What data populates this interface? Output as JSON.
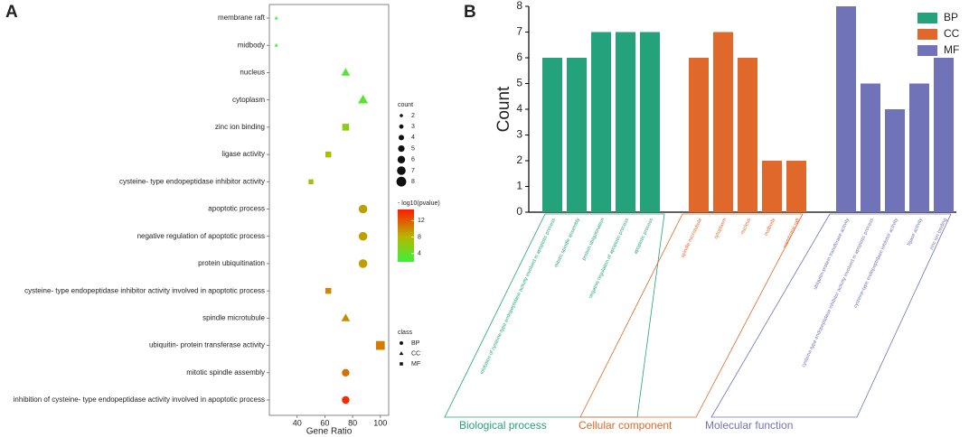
{
  "chart_data": [
    {
      "type": "scatter",
      "panel": "A",
      "x_label": "Gene Ratio",
      "categories": [
        "membrane raft",
        "midbody",
        "nucleus",
        "cytoplasm",
        "zinc ion binding",
        "ligase activity",
        "cysteine- type endopeptidase inhibitor activity",
        "apoptotic process",
        "negative regulation of apoptotic process",
        "protein ubiquitination",
        "cysteine- type endopeptidase inhibitor activity involved in apoptotic process",
        "spindle microtubule",
        "ubiquitin- protein transferase activity",
        "mitotic spindle assembly",
        "inhibition of cysteine- type endopeptidase activity involved in apoptotic process"
      ],
      "x": [
        25,
        25,
        75,
        87.5,
        75,
        62.5,
        50,
        87.5,
        87.5,
        87.5,
        62.5,
        75,
        100,
        75,
        75
      ],
      "counts": [
        2,
        2,
        6,
        7,
        6,
        5,
        4,
        7,
        7,
        7,
        5,
        6,
        8,
        6,
        6
      ],
      "pvalue": [
        2,
        2,
        3,
        3.5,
        6,
        7.5,
        7,
        9,
        9,
        9,
        10,
        10,
        10.5,
        11,
        14
      ],
      "classes": [
        "CC",
        "CC",
        "CC",
        "CC",
        "MF",
        "MF",
        "MF",
        "BP",
        "BP",
        "BP",
        "MF",
        "CC",
        "MF",
        "BP",
        "BP"
      ],
      "xlim": [
        20,
        106
      ],
      "xticks": [
        40,
        60,
        80,
        100
      ],
      "size_legend": {
        "title": "count",
        "values": [
          2,
          3,
          4,
          5,
          6,
          7,
          8
        ]
      },
      "color_legend": {
        "title": "- log10(pvalue)",
        "lim": [
          2,
          14.7
        ],
        "ticks": [
          4,
          8,
          12
        ],
        "colorscale": [
          {
            "value": 2,
            "color": "#3cf03c"
          },
          {
            "value": 8,
            "color": "#b5b800"
          },
          {
            "value": 14.7,
            "color": "#ff1a00"
          }
        ]
      },
      "shape_legend": {
        "title": "class",
        "values": [
          "BP",
          "CC",
          "MF"
        ],
        "shapes": [
          "circle",
          "triangle",
          "square"
        ]
      }
    },
    {
      "type": "bar",
      "panel": "B",
      "y_label": "Count",
      "ylim": [
        0,
        8
      ],
      "yticks": [
        0,
        1,
        2,
        3,
        4,
        5,
        6,
        7,
        8
      ],
      "series": [
        {
          "name": "BP",
          "group": "Biological process",
          "color": "#23a27b",
          "categories": [
            "inhibition of cysteine-type endopeptidase activity involved in apoptotic process",
            "mitotic spindle assembly",
            "protein ubiquitination",
            "negative regulation of apoptotic process",
            "apoptotic process"
          ],
          "values": [
            6,
            6,
            7,
            7,
            7
          ]
        },
        {
          "name": "CC",
          "group": "Cellular component",
          "color": "#e0682a",
          "categories": [
            "spindle microtubule",
            "cytoplasm",
            "nucleus",
            "midbody",
            "membrane raft"
          ],
          "values": [
            6,
            7,
            6,
            2,
            2
          ]
        },
        {
          "name": "MF",
          "group": "Molecular function",
          "color": "#7073b8",
          "categories": [
            "ubiquitin-protein transferase activity",
            "cysteine-type endopeptidase inhibitor activity involved in apoptotic process",
            "cysteine-type endopeptidase inhibitor activity",
            "ligase activity",
            "zinc ion binding"
          ],
          "values": [
            8,
            5,
            4,
            5,
            6
          ]
        }
      ]
    }
  ]
}
